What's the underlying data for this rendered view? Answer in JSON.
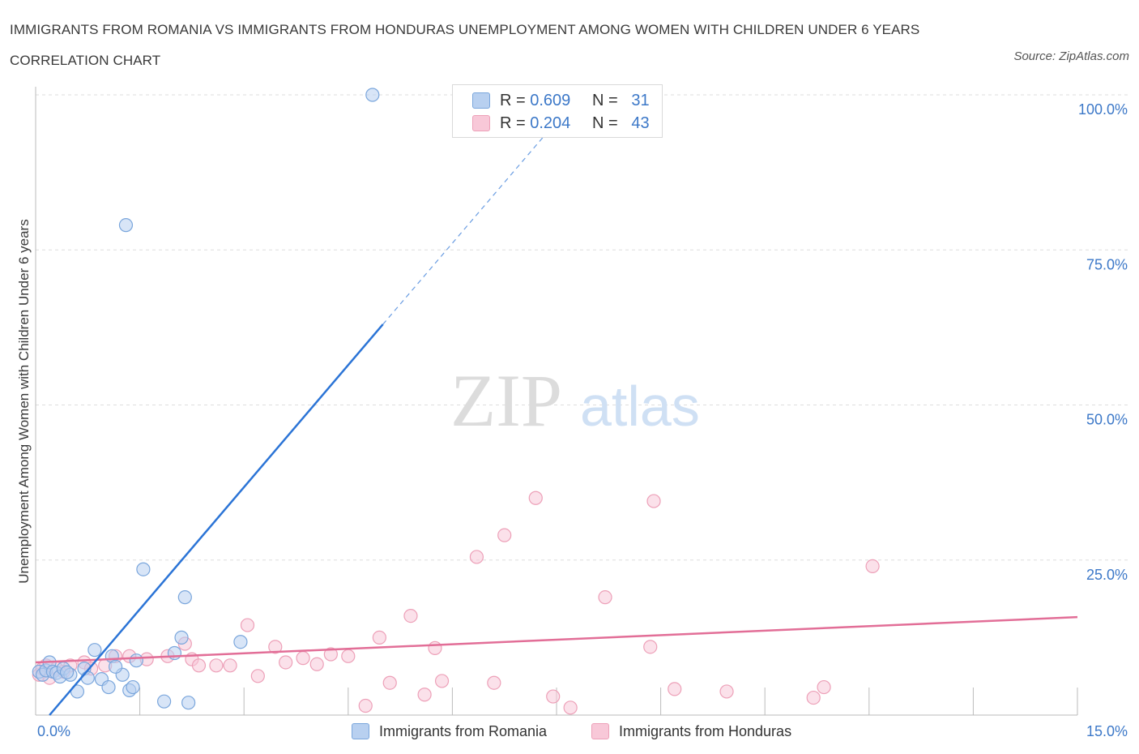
{
  "title": "IMMIGRANTS FROM ROMANIA VS IMMIGRANTS FROM HONDURAS UNEMPLOYMENT AMONG WOMEN WITH CHILDREN UNDER 6 YEARS CORRELATION CHART",
  "source": "Source: ZipAtlas.com",
  "watermark": {
    "zip": "ZIP",
    "atlas": "atlas"
  },
  "colors": {
    "romania_fill": "#b8d0f0",
    "romania_stroke": "#7aa6dc",
    "romania_line": "#2b74d6",
    "honduras_fill": "#f8c8d8",
    "honduras_stroke": "#eda0b8",
    "honduras_line": "#e26e97",
    "tick_label": "#3c78c8",
    "grid": "#dddddd"
  },
  "legend": {
    "rows": [
      {
        "r_label": "R = ",
        "r_value": "0.609",
        "n_label": "N = ",
        "n_value": "31"
      },
      {
        "r_label": "R = ",
        "r_value": "0.204",
        "n_label": "N = ",
        "n_value": "43"
      }
    ],
    "bottom": [
      "Immigrants from Romania",
      "Immigrants from Honduras"
    ]
  },
  "chart_data": {
    "type": "scatter",
    "title": "IMMIGRANTS FROM ROMANIA VS IMMIGRANTS FROM HONDURAS UNEMPLOYMENT AMONG WOMEN WITH CHILDREN UNDER 6 YEARS CORRELATION CHART",
    "xlabel": "",
    "ylabel": "Unemployment Among Women with Children Under 6 years",
    "xlim": [
      0,
      15
    ],
    "ylim": [
      0,
      100
    ],
    "x_tick_labels": [
      "0.0%",
      "15.0%"
    ],
    "y_ticks": [
      25,
      50,
      75,
      100
    ],
    "y_tick_labels": [
      "25.0%",
      "50.0%",
      "75.0%",
      "100.0%"
    ],
    "grid": true,
    "legend_position": "top-center",
    "series": [
      {
        "name": "Immigrants from Romania",
        "R": 0.609,
        "N": 31,
        "trend": {
          "x": [
            0.2,
            5.0
          ],
          "y": [
            0.0,
            63.0
          ],
          "dashed_to": [
            7.4,
            94.4
          ]
        },
        "points": [
          [
            0.05,
            7.0
          ],
          [
            0.1,
            6.5
          ],
          [
            0.15,
            7.2
          ],
          [
            0.2,
            8.5
          ],
          [
            0.25,
            7.0
          ],
          [
            0.3,
            6.8
          ],
          [
            0.35,
            6.2
          ],
          [
            0.4,
            7.5
          ],
          [
            0.5,
            6.5
          ],
          [
            0.6,
            3.8
          ],
          [
            0.7,
            7.5
          ],
          [
            0.75,
            6.0
          ],
          [
            0.85,
            10.5
          ],
          [
            0.95,
            5.8
          ],
          [
            1.05,
            4.5
          ],
          [
            1.1,
            9.5
          ],
          [
            1.25,
            6.5
          ],
          [
            1.35,
            4.0
          ],
          [
            1.4,
            4.5
          ],
          [
            1.45,
            8.8
          ],
          [
            1.55,
            23.5
          ],
          [
            1.85,
            2.2
          ],
          [
            2.0,
            10.0
          ],
          [
            2.1,
            12.5
          ],
          [
            2.15,
            19.0
          ],
          [
            2.2,
            2.0
          ],
          [
            2.95,
            11.8
          ],
          [
            1.3,
            79.0
          ],
          [
            4.85,
            100.0
          ],
          [
            0.45,
            6.9
          ],
          [
            1.15,
            7.8
          ]
        ]
      },
      {
        "name": "Immigrants from Honduras",
        "R": 0.204,
        "N": 43,
        "trend": {
          "x": [
            0.0,
            15.0
          ],
          "y": [
            8.5,
            15.8
          ]
        },
        "points": [
          [
            0.05,
            6.5
          ],
          [
            0.1,
            7.5
          ],
          [
            0.15,
            8.0
          ],
          [
            0.2,
            6.0
          ],
          [
            0.3,
            7.5
          ],
          [
            0.4,
            7.0
          ],
          [
            0.5,
            8.0
          ],
          [
            0.7,
            8.5
          ],
          [
            0.8,
            7.5
          ],
          [
            1.0,
            8.0
          ],
          [
            1.15,
            9.5
          ],
          [
            1.35,
            9.5
          ],
          [
            1.6,
            9.0
          ],
          [
            1.9,
            9.5
          ],
          [
            2.15,
            11.5
          ],
          [
            2.25,
            9.0
          ],
          [
            2.35,
            8.0
          ],
          [
            2.6,
            8.0
          ],
          [
            2.8,
            8.0
          ],
          [
            3.05,
            14.5
          ],
          [
            3.2,
            6.3
          ],
          [
            3.45,
            11.0
          ],
          [
            3.6,
            8.5
          ],
          [
            3.85,
            9.2
          ],
          [
            4.05,
            8.2
          ],
          [
            4.25,
            9.8
          ],
          [
            4.5,
            9.5
          ],
          [
            4.75,
            1.5
          ],
          [
            4.95,
            12.5
          ],
          [
            5.1,
            5.2
          ],
          [
            5.4,
            16.0
          ],
          [
            5.6,
            3.3
          ],
          [
            5.75,
            10.8
          ],
          [
            5.85,
            5.5
          ],
          [
            6.35,
            25.5
          ],
          [
            6.6,
            5.2
          ],
          [
            6.75,
            29.0
          ],
          [
            7.2,
            35.0
          ],
          [
            7.45,
            3.0
          ],
          [
            7.7,
            1.2
          ],
          [
            8.2,
            19.0
          ],
          [
            8.85,
            11.0
          ],
          [
            8.9,
            34.5
          ]
        ],
        "extra_points": [
          [
            9.2,
            4.2
          ],
          [
            9.95,
            3.8
          ],
          [
            11.2,
            2.8
          ],
          [
            11.35,
            4.5
          ],
          [
            12.05,
            24.0
          ]
        ]
      }
    ]
  }
}
